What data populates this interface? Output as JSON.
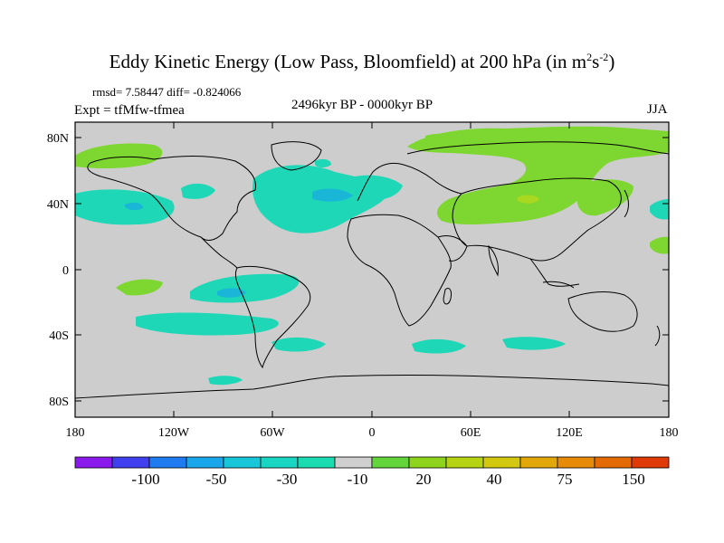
{
  "title": {
    "main": "Eddy Kinetic Energy (Low Pass, Bloomfield) at 200 hPa (in m",
    "sup1": "2",
    "mid": "s",
    "sup2": "-2",
    "close": ")"
  },
  "stats": "rmsd= 7.58447 diff= -0.824066",
  "expt": "Expt = tfMfw-tfmea",
  "period": "2496kyr BP - 0000kyr BP",
  "season": "JJA",
  "lat_labels": [
    "80N",
    "40N",
    "0",
    "40S",
    "80S"
  ],
  "lon_labels": [
    "180",
    "120W",
    "60W",
    "0",
    "60E",
    "120E",
    "180"
  ],
  "colorbar": {
    "colors": [
      "#8a1aec",
      "#3f3ff0",
      "#1f7cf0",
      "#1aa6ea",
      "#17c6d8",
      "#19d6c2",
      "#1adcb0",
      "#cfcfcf",
      "#64d43c",
      "#8fd41c",
      "#b6d414",
      "#d2c810",
      "#e2a80a",
      "#e68a08",
      "#e46a06",
      "#e03a08"
    ],
    "labels": [
      "-100",
      "-50",
      "-30",
      "-10",
      "20",
      "40",
      "75",
      "150"
    ]
  },
  "palette": {
    "land_bg": "#cdcdcd",
    "green": "#7ed630",
    "green_light": "#a8d820",
    "cyan": "#1ed7b6",
    "cyan_deep": "#19b6d8",
    "coast": "#000000"
  }
}
